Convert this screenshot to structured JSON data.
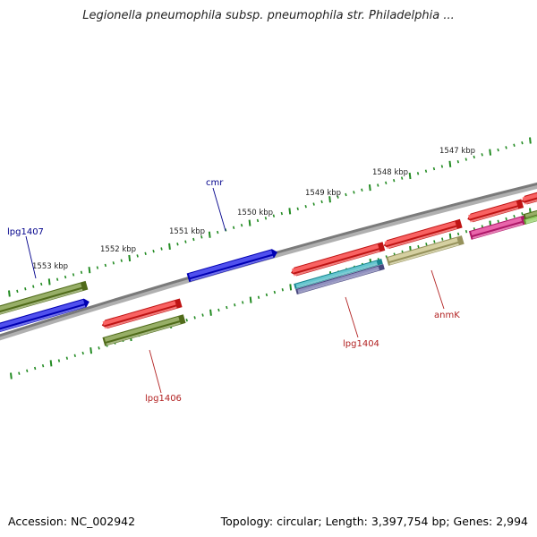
{
  "title": "Legionella pneumophila subsp. pneumophila str. Philadelphia ...",
  "footer": {
    "accession": "Accession: NC_002942",
    "summary": "Topology: circular; Length: 3,397,754 bp; Genes: 2,994"
  },
  "scale": {
    "color": "#228b22",
    "labels": [
      "1553 kbp",
      "1552 kbp",
      "1551 kbp",
      "1550 kbp",
      "1549 kbp",
      "1548 kbp",
      "1547 kbp"
    ]
  },
  "gene_labels": [
    {
      "text": "lpg1407",
      "color": "#00008b"
    },
    {
      "text": "cmr",
      "color": "#00008b"
    },
    {
      "text": "lpg1406",
      "color": "#b22222"
    },
    {
      "text": "lpg1404",
      "color": "#b22222"
    },
    {
      "text": "anmK",
      "color": "#b22222"
    }
  ],
  "colors": {
    "backbone": "#808080",
    "red": "#ff1a1a",
    "blue": "#0000ee",
    "olive": "#6b8e23",
    "khaki": "#c8c27a",
    "cyan": "#20b2c0",
    "purple": "#6060a8",
    "magenta": "#e8208a",
    "lime": "#7fd040"
  }
}
